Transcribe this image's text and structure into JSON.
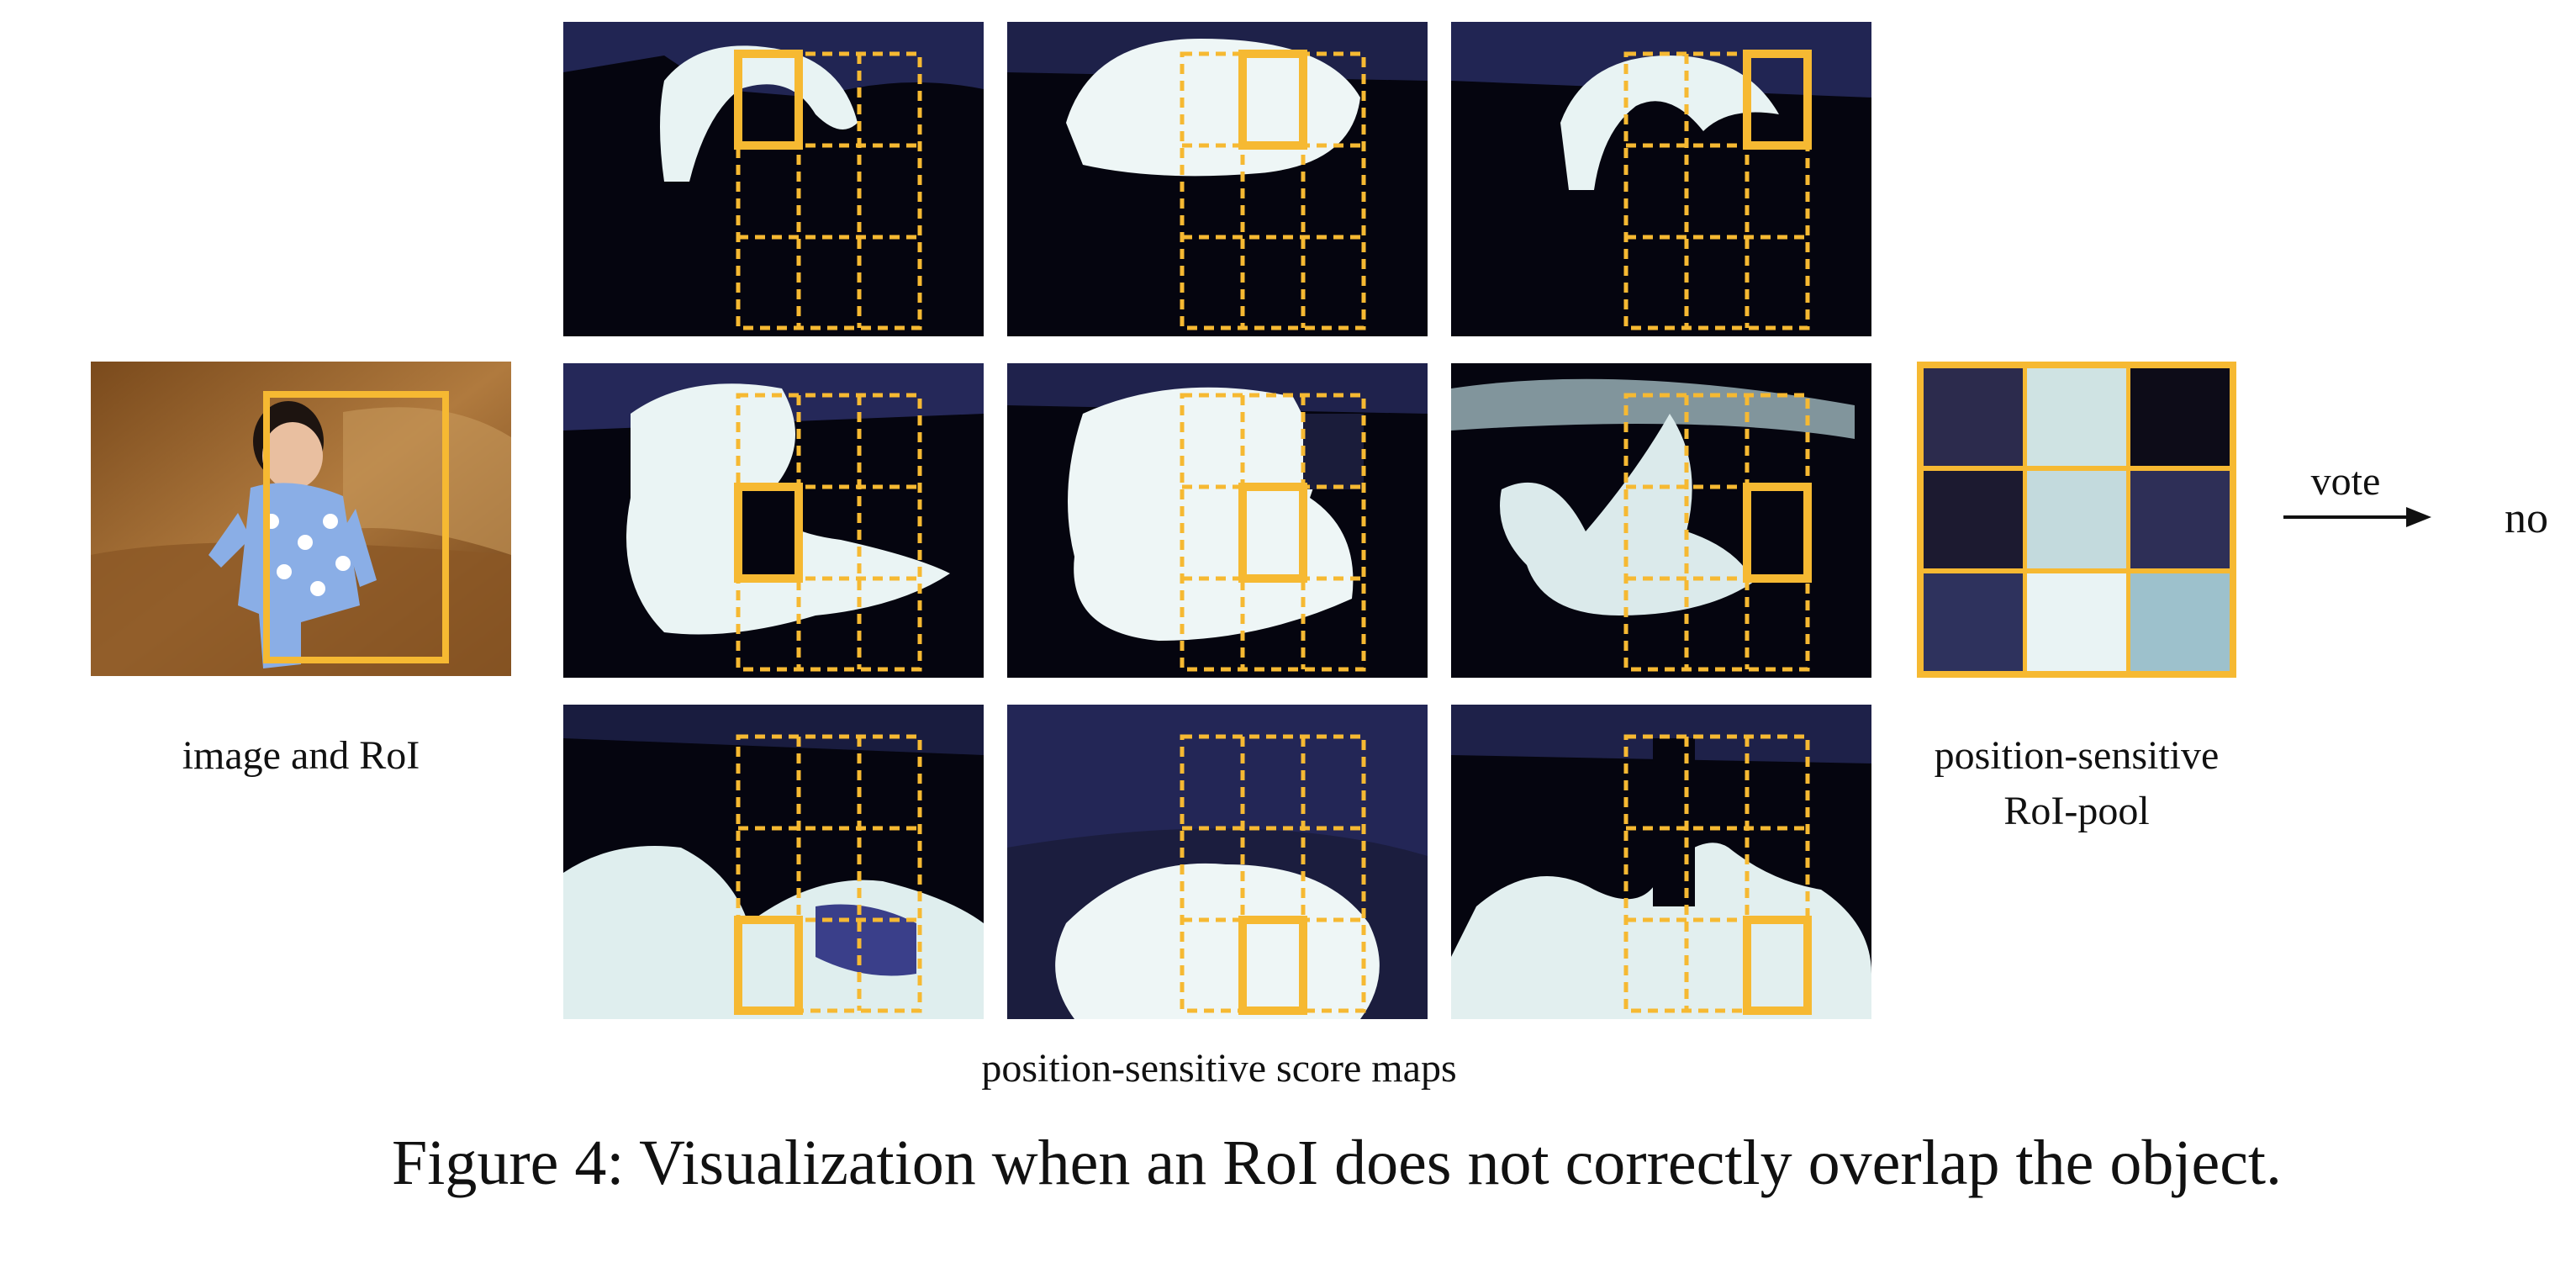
{
  "figure": {
    "caption": "Figure 4: Visualization when an RoI does not correctly overlap the object.",
    "image_label": "image and RoI",
    "score_maps_label": "position-sensitive score maps",
    "pool_label_line1": "position-sensitive",
    "pool_label_line2": "RoI-pool",
    "vote_label": "vote",
    "result_label": "no"
  },
  "colors": {
    "roi_box": "#f6b932",
    "map_dark": "#05050f",
    "map_blue": "#3a3f8a",
    "map_light": "#eef6f6"
  },
  "pooled_grid": [
    [
      "#2c2b4d",
      "#cfe3e3",
      "#0d0c18"
    ],
    [
      "#1c1a30",
      "#c3dadd",
      "#2e2f57"
    ],
    [
      "#2e325d",
      "#e9f3f4",
      "#9dc1cc"
    ]
  ]
}
